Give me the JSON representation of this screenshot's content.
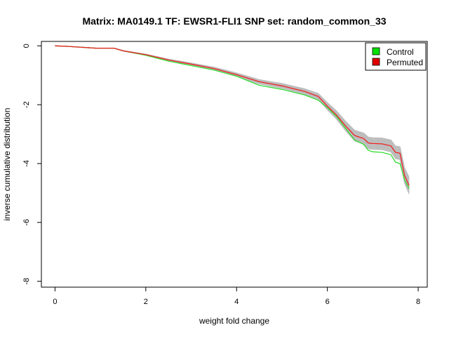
{
  "chart_data": {
    "type": "line",
    "title": "Matrix: MA0149.1 TF: EWSR1-FLI1 SNP set: random_common_33",
    "xlabel": "weight fold change",
    "ylabel": "inverse cumulative distribution",
    "xlim": [
      -0.3,
      8.2
    ],
    "ylim": [
      -8.2,
      0.15
    ],
    "xticks": [
      0,
      2,
      4,
      6,
      8
    ],
    "yticks": [
      0,
      -2,
      -4,
      -6,
      -8
    ],
    "grid": false,
    "legend": {
      "position": "top-right",
      "entries": [
        {
          "label": "Control",
          "color": "#00e000"
        },
        {
          "label": "Permuted",
          "color": "#e00000"
        }
      ]
    },
    "series": [
      {
        "name": "Control",
        "color": "#33dd33",
        "x": [
          0,
          0.3,
          0.6,
          0.9,
          1.3,
          1.5,
          2.0,
          2.5,
          3.0,
          3.5,
          4.0,
          4.5,
          5.0,
          5.5,
          5.8,
          6.0,
          6.2,
          6.4,
          6.6,
          6.8,
          6.9,
          7.0,
          7.2,
          7.4,
          7.5,
          7.6,
          7.7,
          7.8
        ],
        "y": [
          0,
          -0.02,
          -0.05,
          -0.08,
          -0.08,
          -0.17,
          -0.32,
          -0.52,
          -0.67,
          -0.82,
          -1.03,
          -1.34,
          -1.48,
          -1.67,
          -1.85,
          -2.1,
          -2.4,
          -2.8,
          -3.2,
          -3.35,
          -3.55,
          -3.6,
          -3.62,
          -3.7,
          -3.95,
          -4.0,
          -4.55,
          -4.85
        ]
      },
      {
        "name": "Permuted",
        "color": "#ee2222",
        "x": [
          0,
          0.3,
          0.6,
          0.9,
          1.3,
          1.5,
          2.0,
          2.5,
          3.0,
          3.5,
          4.0,
          4.5,
          5.0,
          5.5,
          5.8,
          6.0,
          6.2,
          6.4,
          6.6,
          6.8,
          6.9,
          7.0,
          7.2,
          7.4,
          7.5,
          7.6,
          7.7,
          7.8
        ],
        "y": [
          0,
          -0.02,
          -0.05,
          -0.08,
          -0.08,
          -0.17,
          -0.3,
          -0.48,
          -0.62,
          -0.77,
          -0.98,
          -1.22,
          -1.36,
          -1.55,
          -1.72,
          -2.05,
          -2.35,
          -2.72,
          -3.05,
          -3.15,
          -3.3,
          -3.32,
          -3.33,
          -3.4,
          -3.62,
          -3.65,
          -4.4,
          -4.75
        ]
      }
    ]
  }
}
